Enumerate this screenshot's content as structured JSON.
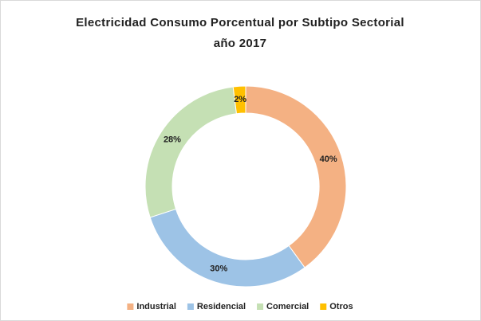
{
  "chart_data": {
    "type": "donut",
    "title": "Electricidad Consumo Porcentual por Subtipo Sectorial año 2017",
    "categories": [
      "Industrial",
      "Residencial",
      "Comercial",
      "Otros"
    ],
    "values": [
      40,
      30,
      28,
      2
    ],
    "value_labels": [
      "40%",
      "30%",
      "28%",
      "2%"
    ],
    "colors": [
      "#f4b183",
      "#9dc3e6",
      "#c5e0b4",
      "#ffc000"
    ],
    "legend": "bottom"
  }
}
